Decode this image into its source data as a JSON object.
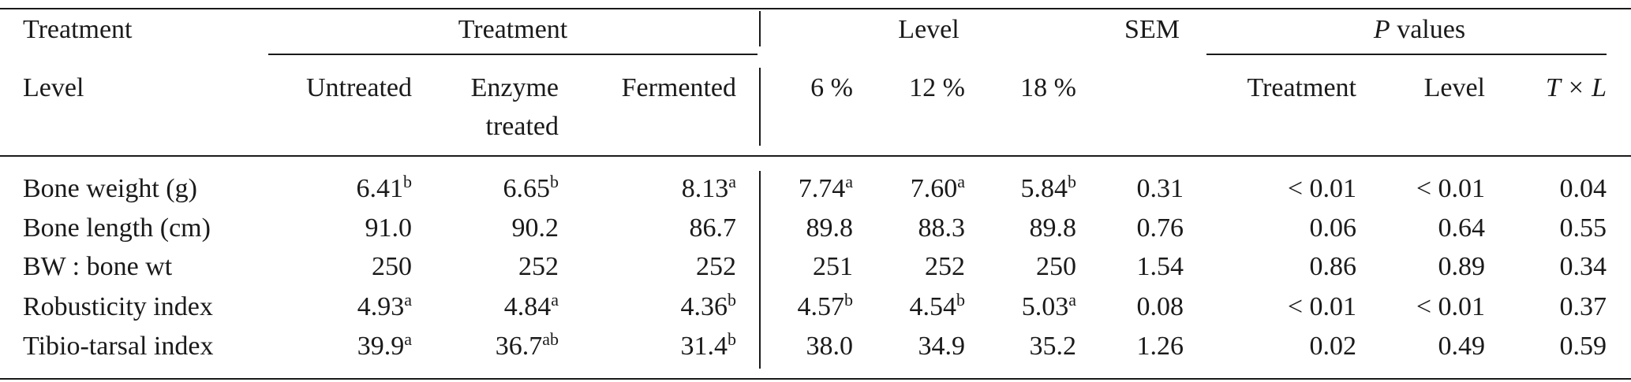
{
  "table": {
    "header": {
      "row_label_top": "Treatment",
      "row_label_bottom": "Level",
      "group_treatment": "Treatment",
      "group_level": "Level",
      "sem": "SEM",
      "p_values": {
        "symbol": "P",
        "word": "values"
      },
      "columns": [
        [
          "Untreated"
        ],
        [
          "Enzyme",
          "treated"
        ],
        [
          "Fermented"
        ],
        [
          "6 %"
        ],
        [
          "12 %"
        ],
        [
          "18 %"
        ],
        [],
        [
          "Treatment"
        ],
        [
          "Level"
        ],
        [
          "T × L"
        ]
      ]
    },
    "rows": [
      {
        "label": "Bone weight (g)",
        "cells": [
          {
            "text": "6.41",
            "sup": "b"
          },
          {
            "text": "6.65",
            "sup": "b"
          },
          {
            "text": "8.13",
            "sup": "a"
          },
          {
            "text": "7.74",
            "sup": "a"
          },
          {
            "text": "7.60",
            "sup": "a"
          },
          {
            "text": "5.84",
            "sup": "b"
          },
          {
            "text": "0.31"
          },
          {
            "text": "< 0.01"
          },
          {
            "text": "< 0.01"
          },
          {
            "text": "0.04"
          }
        ]
      },
      {
        "label": "Bone length (cm)",
        "cells": [
          {
            "text": "91.0"
          },
          {
            "text": "90.2"
          },
          {
            "text": "86.7"
          },
          {
            "text": "89.8"
          },
          {
            "text": "88.3"
          },
          {
            "text": "89.8"
          },
          {
            "text": "0.76"
          },
          {
            "text": "0.06"
          },
          {
            "text": "0.64"
          },
          {
            "text": "0.55"
          }
        ]
      },
      {
        "label": "BW : bone wt",
        "cells": [
          {
            "text": "250"
          },
          {
            "text": "252"
          },
          {
            "text": "252"
          },
          {
            "text": "251"
          },
          {
            "text": "252"
          },
          {
            "text": "250"
          },
          {
            "text": "1.54"
          },
          {
            "text": "0.86"
          },
          {
            "text": "0.89"
          },
          {
            "text": "0.34"
          }
        ]
      },
      {
        "label": "Robusticity index",
        "cells": [
          {
            "text": "4.93",
            "sup": "a"
          },
          {
            "text": "4.84",
            "sup": "a"
          },
          {
            "text": "4.36",
            "sup": "b"
          },
          {
            "text": "4.57",
            "sup": "b"
          },
          {
            "text": "4.54",
            "sup": "b"
          },
          {
            "text": "5.03",
            "sup": "a"
          },
          {
            "text": "0.08"
          },
          {
            "text": "< 0.01"
          },
          {
            "text": "< 0.01"
          },
          {
            "text": "0.37"
          }
        ]
      },
      {
        "label": "Tibio-tarsal index",
        "cells": [
          {
            "text": "39.9",
            "sup": "a"
          },
          {
            "text": "36.7",
            "sup": "ab"
          },
          {
            "text": "31.4",
            "sup": "b"
          },
          {
            "text": "38.0"
          },
          {
            "text": "34.9"
          },
          {
            "text": "35.2"
          },
          {
            "text": "1.26"
          },
          {
            "text": "0.02"
          },
          {
            "text": "0.49"
          },
          {
            "text": "0.59"
          }
        ]
      }
    ]
  }
}
